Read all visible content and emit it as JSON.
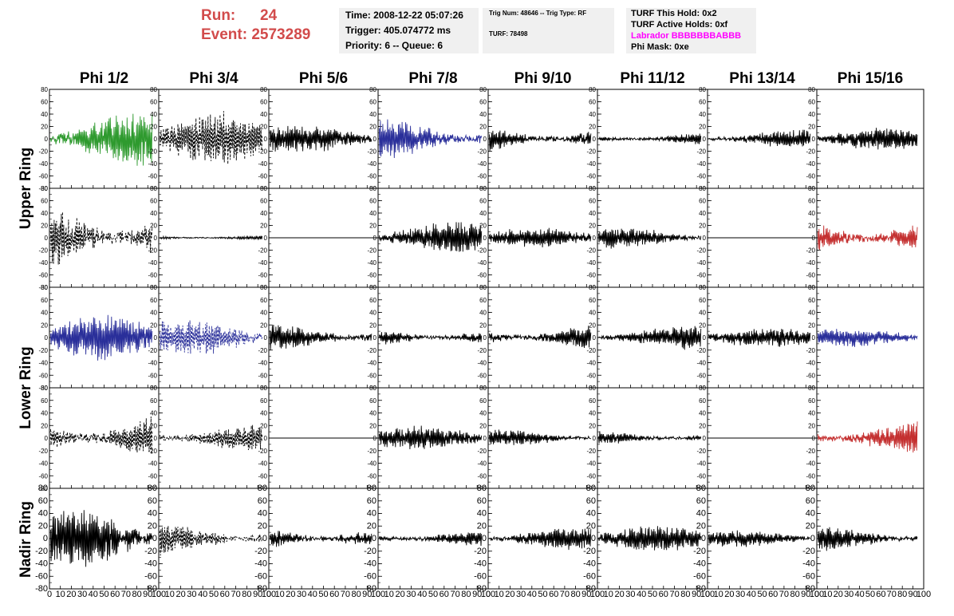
{
  "header": {
    "run_label": "Run:",
    "run_value": "24",
    "event_label": "Event:",
    "event_value": "2573289",
    "time": "Time: 2008-12-22 05:07:26",
    "trigger": "Trigger: 405.074772 ms",
    "priority": "Priority: 6 -- Queue: 6",
    "trig_num": "Trig Num: 48646 -- Trig Type: RF",
    "turf": "TURF: 78498",
    "turf_hold": "TURF This Hold: 0x2",
    "turf_active": "TURF Active Holds: 0xf",
    "labrador": "Labrador BBBBBBBABBB",
    "phi_mask": "Phi Mask: 0xe"
  },
  "chart_data": {
    "type": "line",
    "columns": [
      "Phi 1/2",
      "Phi 3/4",
      "Phi 5/6",
      "Phi 7/8",
      "Phi 9/10",
      "Phi 11/12",
      "Phi 13/14",
      "Phi 15/16"
    ],
    "ring_labels": [
      "Upper Ring",
      "Lower Ring",
      "Nadir Ring"
    ],
    "xlim": [
      0,
      100
    ],
    "ylim": [
      -80,
      80
    ],
    "x_ticks": [
      "0",
      "10",
      "20",
      "30",
      "40",
      "50",
      "60",
      "70",
      "80",
      "90",
      "100"
    ],
    "y_ticks": [
      "80",
      "60",
      "40",
      "20",
      "0",
      "-20",
      "-40",
      "-60",
      "-80"
    ],
    "colors": {
      "green": "#2e9a2e",
      "blue": "#2a2f9a",
      "red": "#c43030",
      "black": "#000000"
    },
    "panels": [
      {
        "row": 0,
        "col": 0,
        "color": "#2e9a2e",
        "style": "solid",
        "amplitude": 42,
        "seed": 11
      },
      {
        "row": 0,
        "col": 1,
        "color": "#000000",
        "style": "dashed",
        "amplitude": 40,
        "seed": 12
      },
      {
        "row": 0,
        "col": 2,
        "color": "#000000",
        "style": "solid",
        "amplitude": 22,
        "seed": 13
      },
      {
        "row": 0,
        "col": 3,
        "color": "#2a2f9a",
        "style": "solid",
        "amplitude": 28,
        "seed": 14
      },
      {
        "row": 0,
        "col": 4,
        "color": "#000000",
        "style": "solid",
        "amplitude": 20,
        "seed": 15
      },
      {
        "row": 0,
        "col": 5,
        "color": "#000000",
        "style": "solid",
        "amplitude": 10,
        "seed": 16
      },
      {
        "row": 0,
        "col": 6,
        "color": "#000000",
        "style": "solid",
        "amplitude": 14,
        "seed": 17
      },
      {
        "row": 0,
        "col": 7,
        "color": "#000000",
        "style": "solid",
        "amplitude": 17,
        "seed": 18
      },
      {
        "row": 1,
        "col": 0,
        "color": "#000000",
        "style": "dashed",
        "amplitude": 50,
        "seed": 21
      },
      {
        "row": 1,
        "col": 1,
        "color": "#000000",
        "style": "solid",
        "amplitude": 4,
        "seed": 22
      },
      {
        "row": 1,
        "col": 2,
        "color": "#000000",
        "style": "flat",
        "amplitude": 0,
        "seed": 23
      },
      {
        "row": 1,
        "col": 3,
        "color": "#000000",
        "style": "solid",
        "amplitude": 24,
        "seed": 24
      },
      {
        "row": 1,
        "col": 4,
        "color": "#000000",
        "style": "solid",
        "amplitude": 15,
        "seed": 25
      },
      {
        "row": 1,
        "col": 5,
        "color": "#000000",
        "style": "solid",
        "amplitude": 16,
        "seed": 26
      },
      {
        "row": 1,
        "col": 6,
        "color": "#000000",
        "style": "flat",
        "amplitude": 0,
        "seed": 27
      },
      {
        "row": 1,
        "col": 7,
        "color": "#c43030",
        "style": "solid",
        "amplitude": 30,
        "seed": 28
      },
      {
        "row": 2,
        "col": 0,
        "color": "#2a2f9a",
        "style": "solid",
        "amplitude": 35,
        "seed": 31
      },
      {
        "row": 2,
        "col": 1,
        "color": "#2a2f9a",
        "style": "dashed",
        "amplitude": 28,
        "seed": 32
      },
      {
        "row": 2,
        "col": 2,
        "color": "#000000",
        "style": "solid",
        "amplitude": 20,
        "seed": 33
      },
      {
        "row": 2,
        "col": 3,
        "color": "#000000",
        "style": "solid",
        "amplitude": 15,
        "seed": 34
      },
      {
        "row": 2,
        "col": 4,
        "color": "#000000",
        "style": "solid",
        "amplitude": 20,
        "seed": 35
      },
      {
        "row": 2,
        "col": 5,
        "color": "#000000",
        "style": "solid",
        "amplitude": 18,
        "seed": 36
      },
      {
        "row": 2,
        "col": 6,
        "color": "#000000",
        "style": "solid",
        "amplitude": 15,
        "seed": 37
      },
      {
        "row": 2,
        "col": 7,
        "color": "#2a2f9a",
        "style": "solid",
        "amplitude": 14,
        "seed": 38
      },
      {
        "row": 3,
        "col": 0,
        "color": "#000000",
        "style": "dashed",
        "amplitude": 38,
        "seed": 41
      },
      {
        "row": 3,
        "col": 1,
        "color": "#000000",
        "style": "dashed",
        "amplitude": 20,
        "seed": 42
      },
      {
        "row": 3,
        "col": 2,
        "color": "#000000",
        "style": "flat",
        "amplitude": 0,
        "seed": 43
      },
      {
        "row": 3,
        "col": 3,
        "color": "#000000",
        "style": "solid",
        "amplitude": 18,
        "seed": 44
      },
      {
        "row": 3,
        "col": 4,
        "color": "#000000",
        "style": "solid",
        "amplitude": 12,
        "seed": 45
      },
      {
        "row": 3,
        "col": 5,
        "color": "#000000",
        "style": "solid",
        "amplitude": 11,
        "seed": 46
      },
      {
        "row": 3,
        "col": 6,
        "color": "#000000",
        "style": "flat",
        "amplitude": 0,
        "seed": 47
      },
      {
        "row": 3,
        "col": 7,
        "color": "#c43030",
        "style": "solid",
        "amplitude": 25,
        "seed": 48
      },
      {
        "row": 4,
        "col": 0,
        "color": "#000000",
        "style": "solid",
        "amplitude": 45,
        "seed": 51
      },
      {
        "row": 4,
        "col": 1,
        "color": "#000000",
        "style": "dashed",
        "amplitude": 25,
        "seed": 52
      },
      {
        "row": 4,
        "col": 2,
        "color": "#000000",
        "style": "solid",
        "amplitude": 20,
        "seed": 53
      },
      {
        "row": 4,
        "col": 3,
        "color": "#000000",
        "style": "solid",
        "amplitude": 12,
        "seed": 54
      },
      {
        "row": 4,
        "col": 4,
        "color": "#000000",
        "style": "solid",
        "amplitude": 16,
        "seed": 55
      },
      {
        "row": 4,
        "col": 5,
        "color": "#000000",
        "style": "solid",
        "amplitude": 20,
        "seed": 56
      },
      {
        "row": 4,
        "col": 6,
        "color": "#000000",
        "style": "solid",
        "amplitude": 12,
        "seed": 57
      },
      {
        "row": 4,
        "col": 7,
        "color": "#000000",
        "style": "solid",
        "amplitude": 18,
        "seed": 58
      }
    ]
  }
}
